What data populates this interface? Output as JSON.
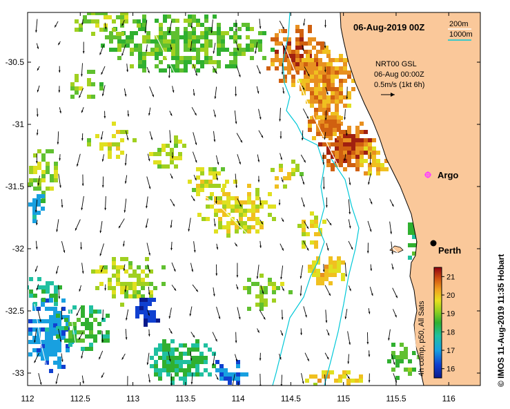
{
  "map": {
    "title": "06-Aug-2019 00Z",
    "lon_ticks": [
      "112",
      "112.5",
      "113",
      "113.5",
      "114",
      "114.5",
      "115",
      "115.5",
      "116"
    ],
    "lat_ticks": [
      "-30.5",
      "-31",
      "-31.5",
      "-32",
      "-32.5",
      "-33"
    ],
    "lon_range": [
      112,
      116.3
    ],
    "lat_range": [
      -30.1,
      -33.1
    ],
    "contours": {
      "c200_label": "200m",
      "c1000_label": "1000m",
      "c1000_color": "#00c8d8"
    },
    "current_legend": {
      "line1": "NRT00 GSL",
      "line2": "06-Aug 00:00Z",
      "line3": "0.5m/s (1kt 6h)"
    },
    "places": [
      {
        "name": "Argo",
        "marker_color": "#ff40ff"
      },
      {
        "name": "Perth",
        "marker_color": "#000000"
      }
    ],
    "colorbar": {
      "label": "4h comp, p50, All Sats",
      "ticks": [
        "16",
        "17",
        "18",
        "19",
        "20",
        "21"
      ],
      "range": [
        15.5,
        21.5
      ]
    },
    "credit": "© IMOS 11-Aug-2019 11:35 Hobart",
    "colors": {
      "land": "#fac89a",
      "water": "#ffffff",
      "contour_200": "#ffffff"
    }
  }
}
